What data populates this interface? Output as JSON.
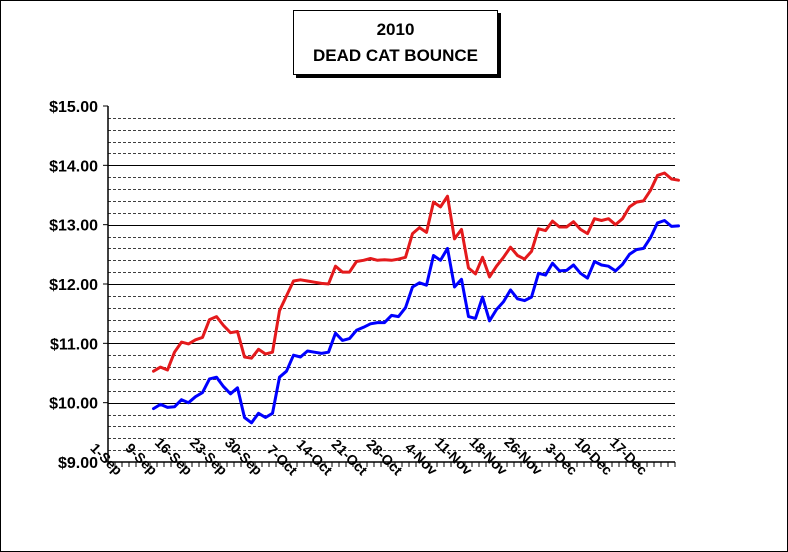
{
  "chart_data": {
    "type": "line",
    "title_line1": "2010",
    "title_line2": "DEAD CAT BOUNCE",
    "xlabel": "",
    "ylabel": "",
    "ylim": [
      9,
      15
    ],
    "y_ticks": [
      9,
      10,
      11,
      12,
      13,
      14,
      15
    ],
    "y_tick_labels": [
      "$9.00",
      "$10.00",
      "$11.00",
      "$12.00",
      "$13.00",
      "$14.00",
      "$15.00"
    ],
    "minor_grid_step": 0.2,
    "x_tick_labels": [
      "1-Sep",
      "9-Sep",
      "16-Sep",
      "23-Sep",
      "30-Sep",
      "7-Oct",
      "14-Oct",
      "21-Oct",
      "28-Oct",
      "4-Nov",
      "11-Nov",
      "18-Nov",
      "26-Nov",
      "3-Dec",
      "10-Dec",
      "17-Dec"
    ],
    "x_tick_positions": [
      0,
      5,
      10,
      15,
      20,
      25,
      30,
      35,
      40,
      45,
      50,
      55,
      60,
      65,
      70,
      75
    ],
    "total_slots": 81,
    "grid": true,
    "series": [
      {
        "color": "#e41a1c",
        "start_slot": 6,
        "values": [
          10.53,
          10.6,
          10.55,
          10.85,
          11.02,
          10.99,
          11.06,
          11.1,
          11.4,
          11.45,
          11.3,
          11.18,
          11.2,
          10.77,
          10.75,
          10.9,
          10.82,
          10.85,
          11.55,
          11.8,
          12.05,
          12.07,
          12.05,
          12.03,
          12.01,
          12.0,
          12.3,
          12.2,
          12.2,
          12.38,
          12.4,
          12.43,
          12.4,
          12.41,
          12.4,
          12.42,
          12.45,
          12.85,
          12.95,
          12.87,
          13.38,
          13.3,
          13.48,
          12.76,
          12.92,
          12.27,
          12.17,
          12.45,
          12.12,
          12.3,
          12.45,
          12.62,
          12.48,
          12.42,
          12.55,
          12.93,
          12.9,
          13.06,
          12.96,
          12.96,
          13.05,
          12.92,
          12.85,
          13.1,
          13.07,
          13.1,
          13.0,
          13.1,
          13.3,
          13.38,
          13.4,
          13.58,
          13.83,
          13.87,
          13.77,
          13.75
        ]
      },
      {
        "color": "#0000ff",
        "start_slot": 6,
        "values": [
          9.9,
          9.97,
          9.92,
          9.93,
          10.05,
          10.0,
          10.1,
          10.17,
          10.4,
          10.43,
          10.27,
          10.15,
          10.25,
          9.75,
          9.66,
          9.82,
          9.75,
          9.82,
          10.43,
          10.53,
          10.8,
          10.77,
          10.87,
          10.85,
          10.83,
          10.85,
          11.17,
          11.05,
          11.08,
          11.22,
          11.27,
          11.33,
          11.35,
          11.35,
          11.47,
          11.45,
          11.6,
          11.95,
          12.02,
          11.98,
          12.48,
          12.4,
          12.6,
          11.95,
          12.08,
          11.45,
          11.42,
          11.78,
          11.38,
          11.57,
          11.7,
          11.9,
          11.75,
          11.72,
          11.78,
          12.18,
          12.15,
          12.35,
          12.22,
          12.23,
          12.32,
          12.18,
          12.1,
          12.38,
          12.32,
          12.3,
          12.22,
          12.33,
          12.5,
          12.58,
          12.6,
          12.78,
          13.03,
          13.07,
          12.97,
          12.98
        ]
      }
    ]
  }
}
